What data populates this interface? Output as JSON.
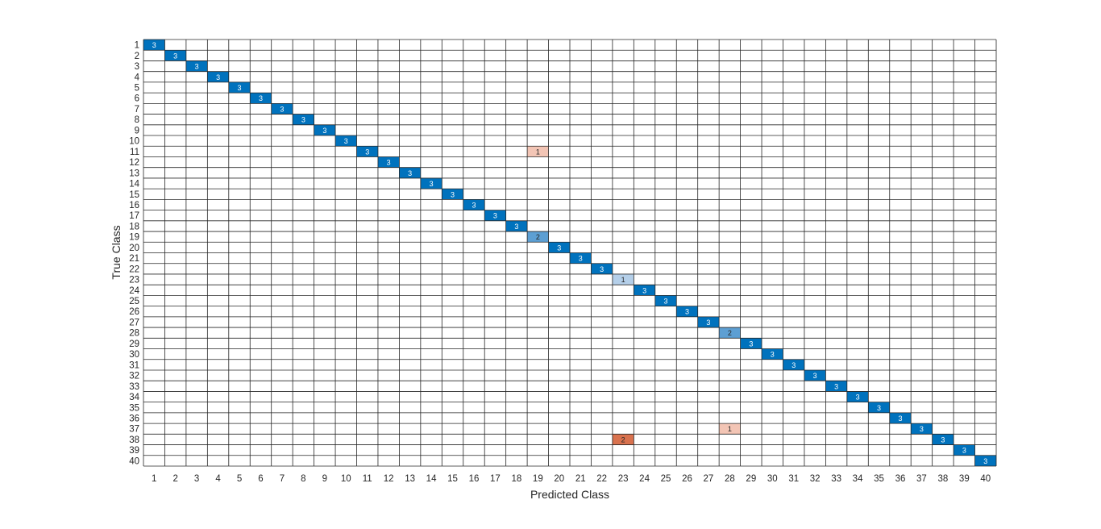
{
  "chart_data": {
    "type": "heatmap",
    "subtype": "confusion-matrix",
    "title": "",
    "xlabel": "Predicted Class",
    "ylabel": "True Class",
    "class_labels": [
      "1",
      "2",
      "3",
      "4",
      "5",
      "6",
      "7",
      "8",
      "9",
      "10",
      "11",
      "12",
      "13",
      "14",
      "15",
      "16",
      "17",
      "18",
      "19",
      "20",
      "21",
      "22",
      "23",
      "24",
      "25",
      "26",
      "27",
      "28",
      "29",
      "30",
      "31",
      "32",
      "33",
      "34",
      "35",
      "36",
      "37",
      "38",
      "39",
      "40"
    ],
    "cells": [
      {
        "true": 1,
        "pred": 1,
        "value": 3
      },
      {
        "true": 2,
        "pred": 2,
        "value": 3
      },
      {
        "true": 3,
        "pred": 3,
        "value": 3
      },
      {
        "true": 4,
        "pred": 4,
        "value": 3
      },
      {
        "true": 5,
        "pred": 5,
        "value": 3
      },
      {
        "true": 6,
        "pred": 6,
        "value": 3
      },
      {
        "true": 7,
        "pred": 7,
        "value": 3
      },
      {
        "true": 8,
        "pred": 8,
        "value": 3
      },
      {
        "true": 9,
        "pred": 9,
        "value": 3
      },
      {
        "true": 10,
        "pred": 10,
        "value": 3
      },
      {
        "true": 11,
        "pred": 11,
        "value": 3
      },
      {
        "true": 11,
        "pred": 19,
        "value": 1
      },
      {
        "true": 12,
        "pred": 12,
        "value": 3
      },
      {
        "true": 13,
        "pred": 13,
        "value": 3
      },
      {
        "true": 14,
        "pred": 14,
        "value": 3
      },
      {
        "true": 15,
        "pred": 15,
        "value": 3
      },
      {
        "true": 16,
        "pred": 16,
        "value": 3
      },
      {
        "true": 17,
        "pred": 17,
        "value": 3
      },
      {
        "true": 18,
        "pred": 18,
        "value": 3
      },
      {
        "true": 19,
        "pred": 19,
        "value": 2
      },
      {
        "true": 20,
        "pred": 20,
        "value": 3
      },
      {
        "true": 21,
        "pred": 21,
        "value": 3
      },
      {
        "true": 22,
        "pred": 22,
        "value": 3
      },
      {
        "true": 23,
        "pred": 23,
        "value": 1
      },
      {
        "true": 24,
        "pred": 24,
        "value": 3
      },
      {
        "true": 25,
        "pred": 25,
        "value": 3
      },
      {
        "true": 26,
        "pred": 26,
        "value": 3
      },
      {
        "true": 27,
        "pred": 27,
        "value": 3
      },
      {
        "true": 28,
        "pred": 28,
        "value": 2
      },
      {
        "true": 29,
        "pred": 29,
        "value": 3
      },
      {
        "true": 30,
        "pred": 30,
        "value": 3
      },
      {
        "true": 31,
        "pred": 31,
        "value": 3
      },
      {
        "true": 32,
        "pred": 32,
        "value": 3
      },
      {
        "true": 33,
        "pred": 33,
        "value": 3
      },
      {
        "true": 34,
        "pred": 34,
        "value": 3
      },
      {
        "true": 35,
        "pred": 35,
        "value": 3
      },
      {
        "true": 36,
        "pred": 36,
        "value": 3
      },
      {
        "true": 37,
        "pred": 37,
        "value": 3
      },
      {
        "true": 37,
        "pred": 28,
        "value": 1
      },
      {
        "true": 38,
        "pred": 38,
        "value": 3
      },
      {
        "true": 38,
        "pred": 23,
        "value": 2
      },
      {
        "true": 39,
        "pred": 39,
        "value": 3
      },
      {
        "true": 40,
        "pred": 40,
        "value": 3
      }
    ],
    "colors": {
      "diagonal": {
        "3": "#0072bd",
        "2": "#5d9fd3",
        "1": "#b4cfe9"
      },
      "off_diagonal": {
        "2": "#d9724e",
        "1": "#f3c5b5"
      },
      "grid_line": "#262626",
      "text_dark_bg": "#ffffff",
      "text_light_bg": "#262626"
    },
    "grid": true,
    "legend": "none"
  }
}
